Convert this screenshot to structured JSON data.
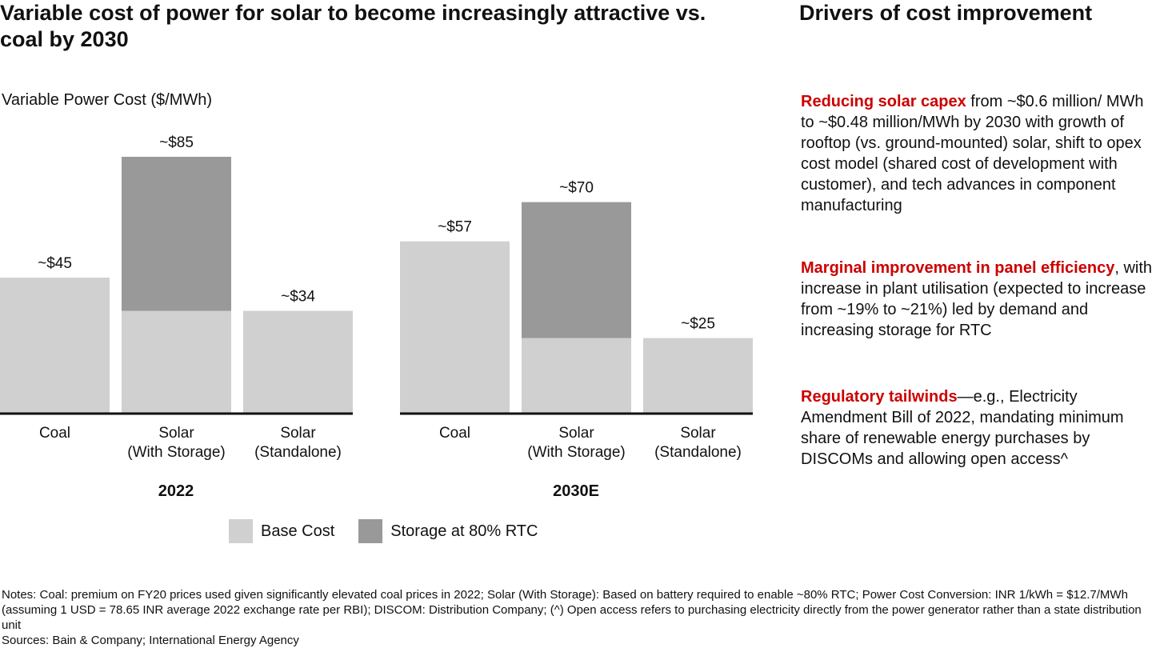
{
  "title": "Variable cost of power for solar to become increasingly attractive vs. coal by 2030",
  "right_title": "Drivers of cost improvement",
  "colors": {
    "base": "#d0d0d0",
    "storage": "#999999",
    "highlight": "#cc0000",
    "axis": "#111111"
  },
  "chart_data": {
    "type": "bar",
    "stacked": true,
    "ylabel": "Variable Power Cost ($/MWh)",
    "groups": [
      {
        "name": "2022",
        "categories": [
          "Coal",
          "Solar\n(With Storage)",
          "Solar\n(Standalone)"
        ],
        "base": [
          45,
          34,
          34
        ],
        "storage": [
          0,
          51,
          0
        ],
        "totals": [
          "~$45",
          "~$85",
          "~$34"
        ]
      },
      {
        "name": "2030E",
        "categories": [
          "Coal",
          "Solar\n(With Storage)",
          "Solar\n(Standalone)"
        ],
        "base": [
          57,
          25,
          25
        ],
        "storage": [
          0,
          45,
          0
        ],
        "totals": [
          "~$57",
          "~$70",
          "~$25"
        ]
      }
    ],
    "series": [
      {
        "name": "Base Cost",
        "color": "#d0d0d0"
      },
      {
        "name": "Storage at 80% RTC",
        "color": "#999999"
      }
    ],
    "ylim": [
      0,
      85
    ],
    "legend": "bottom-center"
  },
  "drivers": [
    {
      "highlight": "Reducing solar capex",
      "text": " from ~$0.6 million/ MWh to ~$0.48 million/MWh by 2030 with growth of rooftop (vs. ground-mounted) solar, shift to opex cost model (shared cost of development with customer), and tech advances in component manufacturing"
    },
    {
      "highlight": "Marginal improvement in panel efficiency",
      "text": ", with increase in plant utilisation (expected to increase from ~19% to ~21%) led by demand and increasing storage for RTC"
    },
    {
      "highlight": "Regulatory tailwinds",
      "text": "—e.g., Electricity Amendment Bill of 2022, mandating minimum share of renewable energy purchases by DISCOMs and allowing open access^"
    }
  ],
  "notes": "Notes: Coal: premium on FY20 prices used given significantly elevated coal prices in 2022; Solar (With Storage): Based on battery required to enable ~80% RTC; Power Cost Conversion: INR 1/kWh = $12.7/MWh (assuming 1 USD = 78.65 INR average 2022 exchange rate per RBI); DISCOM: Distribution Company; (^) Open access refers to purchasing electricity directly from the power generator rather than a state distribution unit",
  "sources": "Sources: Bain & Company; International Energy Agency"
}
